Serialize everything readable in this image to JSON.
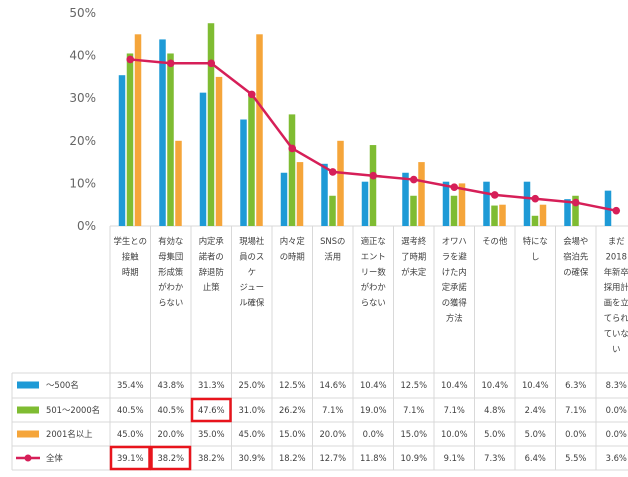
{
  "chart_data": {
    "type": "bar",
    "ylim": [
      0,
      50
    ],
    "y_ticks": [
      "0%",
      "10%",
      "20%",
      "30%",
      "40%",
      "50%"
    ],
    "grid": false,
    "legend": "data table rows (left)",
    "categories": [
      [
        "学生との",
        "接触",
        "時期"
      ],
      [
        "有効な",
        "母集団",
        "形成策",
        "がわか",
        "らない"
      ],
      [
        "内定承",
        "諾者の",
        "辞退防",
        "止策"
      ],
      [
        "現場社",
        "員のス",
        "ケ",
        "ジュー",
        "ル確保"
      ],
      [
        "内々定",
        "の時期"
      ],
      [
        "SNSの",
        "活用"
      ],
      [
        "適正な",
        "エント",
        "リー数",
        "がわか",
        "らない"
      ],
      [
        "選考終",
        "了時期",
        "が未定"
      ],
      [
        "オワハ",
        "ラを避",
        "けた内",
        "定承諾",
        "の獲得",
        "方法"
      ],
      [
        "その他"
      ],
      [
        "特にな",
        "し"
      ],
      [
        "会場や",
        "宿泊先",
        "の確保"
      ],
      [
        "まだ",
        "2018",
        "年新卒",
        "採用計",
        "画を立",
        "てられ",
        "ていな",
        "い"
      ]
    ],
    "series": [
      {
        "name": "～500名",
        "type": "bar",
        "color": "#1e9ad6",
        "values": [
          35.4,
          43.8,
          31.3,
          25.0,
          12.5,
          14.6,
          10.4,
          12.5,
          10.4,
          10.4,
          10.4,
          6.3,
          8.3
        ],
        "labels": [
          "35.4%",
          "43.8%",
          "31.3%",
          "25.0%",
          "12.5%",
          "14.6%",
          "10.4%",
          "12.5%",
          "10.4%",
          "10.4%",
          "10.4%",
          "6.3%",
          "8.3%"
        ]
      },
      {
        "name": "501～2000名",
        "type": "bar",
        "color": "#7fbc32",
        "values": [
          40.5,
          40.5,
          47.6,
          31.0,
          26.2,
          7.1,
          19.0,
          7.1,
          7.1,
          4.8,
          2.4,
          7.1,
          0.0
        ],
        "labels": [
          "40.5%",
          "40.5%",
          "47.6%",
          "31.0%",
          "26.2%",
          "7.1%",
          "19.0%",
          "7.1%",
          "7.1%",
          "4.8%",
          "2.4%",
          "7.1%",
          "0.0%"
        ]
      },
      {
        "name": "2001名以上",
        "type": "bar",
        "color": "#f5a53a",
        "values": [
          45.0,
          20.0,
          35.0,
          45.0,
          15.0,
          20.0,
          0.0,
          15.0,
          10.0,
          5.0,
          5.0,
          0.0,
          0.0
        ],
        "labels": [
          "45.0%",
          "20.0%",
          "35.0%",
          "45.0%",
          "15.0%",
          "20.0%",
          "0.0%",
          "15.0%",
          "10.0%",
          "5.0%",
          "5.0%",
          "0.0%",
          "0.0%"
        ]
      },
      {
        "name": "全体",
        "type": "line",
        "color": "#d61f58",
        "values": [
          39.1,
          38.2,
          38.2,
          30.9,
          18.2,
          12.7,
          11.8,
          10.9,
          9.1,
          7.3,
          6.4,
          5.5,
          3.6
        ],
        "labels": [
          "39.1%",
          "38.2%",
          "38.2%",
          "30.9%",
          "18.2%",
          "12.7%",
          "11.8%",
          "10.9%",
          "9.1%",
          "7.3%",
          "6.4%",
          "5.5%",
          "3.6%"
        ]
      }
    ],
    "highlighted_cells": [
      {
        "series": 1,
        "category": 2
      },
      {
        "series": 3,
        "category": 0
      },
      {
        "series": 3,
        "category": 1
      }
    ],
    "highlight_color": "#e8141c"
  }
}
